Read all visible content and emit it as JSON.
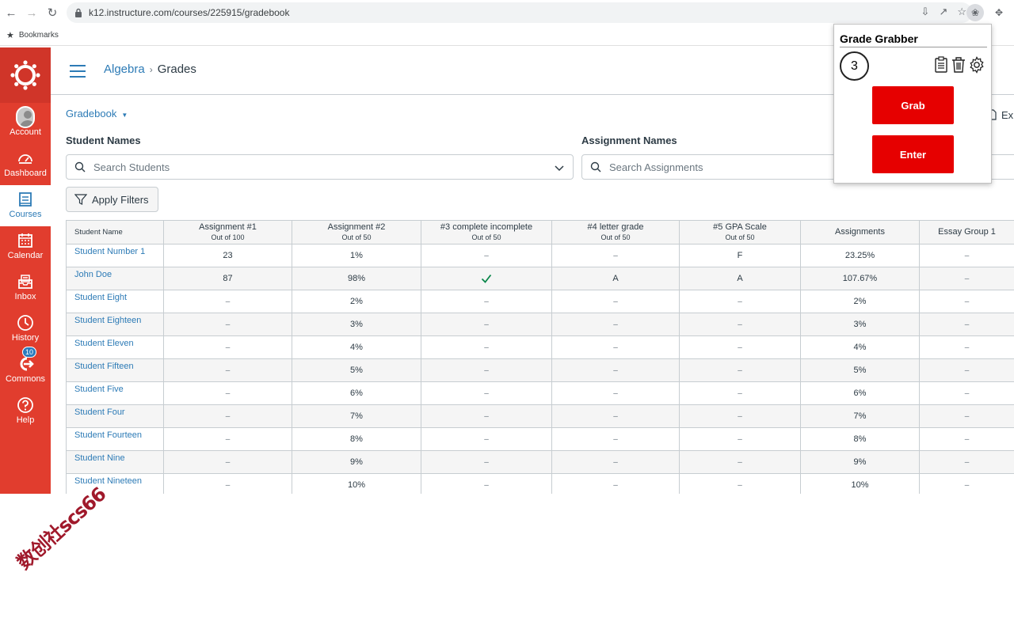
{
  "browser": {
    "url": "k12.instructure.com/courses/225915/gradebook",
    "bookmarks_label": "Bookmarks"
  },
  "sidenav": {
    "items": [
      {
        "label": "Account",
        "icon": "account-avatar-icon"
      },
      {
        "label": "Dashboard",
        "icon": "dashboard-icon"
      },
      {
        "label": "Courses",
        "icon": "courses-icon"
      },
      {
        "label": "Calendar",
        "icon": "calendar-icon"
      },
      {
        "label": "Inbox",
        "icon": "inbox-icon"
      },
      {
        "label": "History",
        "icon": "history-icon"
      },
      {
        "label": "Commons",
        "icon": "commons-icon"
      },
      {
        "label": "Help",
        "icon": "help-icon",
        "badge": "10"
      }
    ],
    "active": "Courses",
    "color": "#e13d2e"
  },
  "breadcrumb": {
    "course": "Algebra",
    "page": "Grades"
  },
  "gradebook_menu": "Gradebook",
  "filters": {
    "student_label": "Student Names",
    "student_placeholder": "Search Students",
    "assignment_label": "Assignment Names",
    "assignment_placeholder": "Search Assignments",
    "apply_label": "Apply Filters",
    "export_label": "Ex"
  },
  "grid": {
    "name_header": "Student Name",
    "columns": [
      {
        "title": "Assignment #1",
        "sub": "Out of 100"
      },
      {
        "title": "Assignment #2",
        "sub": "Out of 50"
      },
      {
        "title": "#3 complete incomplete",
        "sub": "Out of 50"
      },
      {
        "title": "#4 letter grade",
        "sub": "Out of 50"
      },
      {
        "title": "#5 GPA Scale",
        "sub": "Out of 50"
      },
      {
        "title": "Assignments",
        "sub": ""
      },
      {
        "title": "Essay Group 1",
        "sub": ""
      }
    ],
    "rows": [
      {
        "name": "Student Number 1",
        "cells": [
          "23",
          "1%",
          "–",
          "–",
          "F",
          "23.25%",
          "–"
        ]
      },
      {
        "name": "John Doe",
        "cells": [
          "87",
          "98%",
          "✓",
          "A",
          "A",
          "107.67%",
          "–"
        ]
      },
      {
        "name": "Student Eight",
        "cells": [
          "–",
          "2%",
          "–",
          "–",
          "–",
          "2%",
          "–"
        ]
      },
      {
        "name": "Student Eighteen",
        "cells": [
          "–",
          "3%",
          "–",
          "–",
          "–",
          "3%",
          "–"
        ]
      },
      {
        "name": "Student Eleven",
        "cells": [
          "–",
          "4%",
          "–",
          "–",
          "–",
          "4%",
          "–"
        ]
      },
      {
        "name": "Student Fifteen",
        "cells": [
          "–",
          "5%",
          "–",
          "–",
          "–",
          "5%",
          "–"
        ]
      },
      {
        "name": "Student Five",
        "cells": [
          "–",
          "6%",
          "–",
          "–",
          "–",
          "6%",
          "–"
        ]
      },
      {
        "name": "Student Four",
        "cells": [
          "–",
          "7%",
          "–",
          "–",
          "–",
          "7%",
          "–"
        ]
      },
      {
        "name": "Student Fourteen",
        "cells": [
          "–",
          "8%",
          "–",
          "–",
          "–",
          "8%",
          "–"
        ]
      },
      {
        "name": "Student Nine",
        "cells": [
          "–",
          "9%",
          "–",
          "–",
          "–",
          "9%",
          "–"
        ]
      },
      {
        "name": "Student Nineteen",
        "cells": [
          "–",
          "10%",
          "–",
          "–",
          "–",
          "10%",
          "–"
        ]
      }
    ]
  },
  "extension_popup": {
    "title": "Grade Grabber",
    "count": "3",
    "grab_label": "Grab",
    "enter_label": "Enter",
    "button_color": "#e60000",
    "tool_icons": [
      "clipboard-icon",
      "trash-icon",
      "settings-gear-icon"
    ]
  },
  "watermark": "数创社scs66"
}
